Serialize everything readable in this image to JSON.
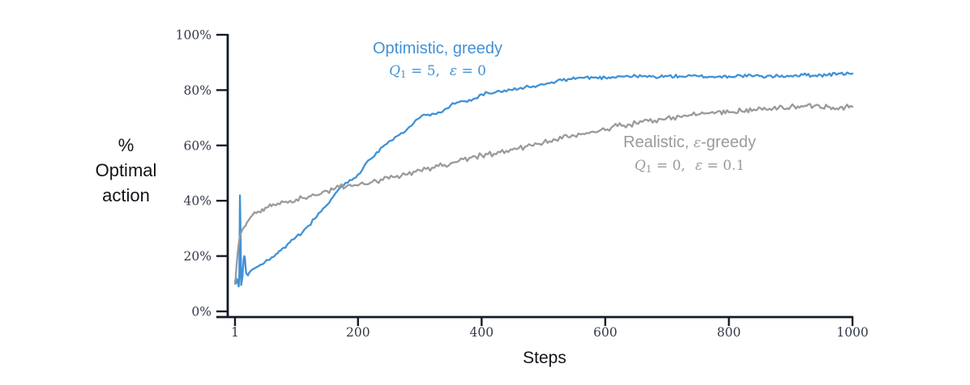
{
  "figure": {
    "ylabel_lines": [
      "%",
      "Optimal",
      "action"
    ],
    "xlabel": "Steps"
  },
  "colors": {
    "axis": "#131a26",
    "tick_text": "#343a4a",
    "optimistic_blue": "#4191d6",
    "realistic_gray": "#9a9a9a",
    "label_black": "#111418",
    "background": "#ffffff"
  },
  "annotations": {
    "optimistic": {
      "line1": "Optimistic, greedy",
      "q": "Q",
      "q_sub": "1",
      "q_eq": " = 5,",
      "eps": "ε",
      "eps_eq": " = 0"
    },
    "realistic": {
      "line1_pre": "Realistic, ",
      "line1_eps": "ε",
      "line1_post": "-greedy",
      "q": "Q",
      "q_sub": "1",
      "q_eq": " = 0,",
      "eps": "ε",
      "eps_eq": " = 0.1"
    }
  },
  "chart_data": {
    "type": "line",
    "title": "",
    "xlabel": "Steps",
    "ylabel": "% Optimal action",
    "xlim": [
      1,
      1000
    ],
    "ylim": [
      0,
      100
    ],
    "grid": false,
    "legend_position": "inline-annotations",
    "x_ticks": {
      "values": [
        1,
        200,
        400,
        600,
        800,
        1000
      ],
      "labels": [
        "1",
        "200",
        "400",
        "600",
        "800",
        "1000"
      ]
    },
    "y_ticks": {
      "values": [
        0,
        20,
        40,
        60,
        80,
        100
      ],
      "labels": [
        "0%",
        "20%",
        "40%",
        "60%",
        "80%",
        "100%"
      ]
    },
    "series": [
      {
        "id": "optimistic-greedy",
        "name": "Optimistic, greedy",
        "params": "Q1 = 5, ε = 0",
        "color": "#4191d6",
        "noise": 0.6,
        "seed": 11,
        "points": [
          [
            1,
            11
          ],
          [
            2,
            10
          ],
          [
            3,
            12
          ],
          [
            4,
            10.5
          ],
          [
            5,
            11.5
          ],
          [
            6,
            10
          ],
          [
            7,
            9
          ],
          [
            8,
            13
          ],
          [
            9,
            42
          ],
          [
            10,
            28
          ],
          [
            11,
            9.5
          ],
          [
            12,
            11
          ],
          [
            13,
            12.5
          ],
          [
            14,
            16
          ],
          [
            15,
            19
          ],
          [
            16,
            20
          ],
          [
            17,
            19.5
          ],
          [
            18,
            16
          ],
          [
            19,
            14
          ],
          [
            20,
            13.5
          ],
          [
            22,
            13
          ],
          [
            24,
            14
          ],
          [
            26,
            14.5
          ],
          [
            28,
            15
          ],
          [
            32,
            15.5
          ],
          [
            36,
            16
          ],
          [
            40,
            16.5
          ],
          [
            45,
            17
          ],
          [
            50,
            18
          ],
          [
            55,
            18.5
          ],
          [
            60,
            19.5
          ],
          [
            65,
            20
          ],
          [
            70,
            21
          ],
          [
            75,
            22
          ],
          [
            80,
            23
          ],
          [
            85,
            24
          ],
          [
            90,
            25
          ],
          [
            95,
            26
          ],
          [
            100,
            27
          ],
          [
            110,
            28.5
          ],
          [
            120,
            31
          ],
          [
            130,
            33.5
          ],
          [
            140,
            36
          ],
          [
            150,
            38.5
          ],
          [
            160,
            41.5
          ],
          [
            170,
            44.5
          ],
          [
            180,
            46.5
          ],
          [
            190,
            47.5
          ],
          [
            200,
            49.5
          ],
          [
            210,
            52.5
          ],
          [
            220,
            55
          ],
          [
            230,
            57.5
          ],
          [
            240,
            59.5
          ],
          [
            250,
            61.5
          ],
          [
            260,
            63
          ],
          [
            270,
            64.5
          ],
          [
            280,
            66
          ],
          [
            290,
            68
          ],
          [
            300,
            70
          ],
          [
            310,
            71
          ],
          [
            320,
            71.5
          ],
          [
            330,
            72
          ],
          [
            340,
            73
          ],
          [
            350,
            74.5
          ],
          [
            360,
            75.5
          ],
          [
            370,
            76
          ],
          [
            380,
            76.5
          ],
          [
            390,
            77
          ],
          [
            400,
            78.5
          ],
          [
            410,
            79
          ],
          [
            420,
            79
          ],
          [
            430,
            79.5
          ],
          [
            440,
            79.5
          ],
          [
            450,
            80
          ],
          [
            460,
            80.5
          ],
          [
            470,
            81
          ],
          [
            480,
            81
          ],
          [
            490,
            81.5
          ],
          [
            500,
            82
          ],
          [
            510,
            82.5
          ],
          [
            520,
            83
          ],
          [
            530,
            83.5
          ],
          [
            540,
            84
          ],
          [
            560,
            84.5
          ],
          [
            580,
            84.5
          ],
          [
            600,
            84.5
          ],
          [
            620,
            85
          ],
          [
            650,
            85
          ],
          [
            680,
            84.8
          ],
          [
            700,
            85
          ],
          [
            720,
            85
          ],
          [
            750,
            85
          ],
          [
            780,
            84.8
          ],
          [
            800,
            85
          ],
          [
            820,
            85.2
          ],
          [
            850,
            85
          ],
          [
            880,
            85
          ],
          [
            900,
            85.2
          ],
          [
            920,
            85.5
          ],
          [
            940,
            85.3
          ],
          [
            960,
            85.5
          ],
          [
            980,
            86
          ],
          [
            1000,
            86
          ]
        ]
      },
      {
        "id": "realistic-eps-greedy",
        "name": "Realistic, ε-greedy",
        "params": "Q1 = 0, ε = 0.1",
        "color": "#9a9a9a",
        "noise": 1.0,
        "seed": 23,
        "points": [
          [
            1,
            10
          ],
          [
            2,
            12
          ],
          [
            3,
            15
          ],
          [
            4,
            18
          ],
          [
            5,
            20.5
          ],
          [
            6,
            22.5
          ],
          [
            7,
            24.5
          ],
          [
            8,
            26
          ],
          [
            9,
            27
          ],
          [
            10,
            28
          ],
          [
            12,
            29
          ],
          [
            14,
            30
          ],
          [
            16,
            30.5
          ],
          [
            18,
            31
          ],
          [
            20,
            32
          ],
          [
            23,
            33
          ],
          [
            26,
            34
          ],
          [
            30,
            35
          ],
          [
            35,
            35.5
          ],
          [
            40,
            36
          ],
          [
            45,
            37
          ],
          [
            50,
            37.5
          ],
          [
            55,
            37.8
          ],
          [
            60,
            38
          ],
          [
            65,
            38.5
          ],
          [
            70,
            39
          ],
          [
            80,
            39.5
          ],
          [
            90,
            40
          ],
          [
            100,
            40.5
          ],
          [
            110,
            41
          ],
          [
            120,
            41.5
          ],
          [
            130,
            42
          ],
          [
            140,
            42.5
          ],
          [
            150,
            43.5
          ],
          [
            160,
            44
          ],
          [
            170,
            45
          ],
          [
            180,
            45
          ],
          [
            190,
            45.3
          ],
          [
            200,
            45.5
          ],
          [
            210,
            46
          ],
          [
            220,
            46.5
          ],
          [
            230,
            47
          ],
          [
            240,
            47.5
          ],
          [
            250,
            48
          ],
          [
            260,
            48.5
          ],
          [
            270,
            49
          ],
          [
            280,
            49.5
          ],
          [
            290,
            50.5
          ],
          [
            300,
            51
          ],
          [
            310,
            51.5
          ],
          [
            320,
            52
          ],
          [
            330,
            52.5
          ],
          [
            340,
            53
          ],
          [
            350,
            53.5
          ],
          [
            360,
            54
          ],
          [
            370,
            55
          ],
          [
            380,
            55.5
          ],
          [
            390,
            56
          ],
          [
            400,
            56.5
          ],
          [
            410,
            56.8
          ],
          [
            420,
            57
          ],
          [
            430,
            57.5
          ],
          [
            440,
            58
          ],
          [
            450,
            58.5
          ],
          [
            460,
            59
          ],
          [
            470,
            59.5
          ],
          [
            480,
            60
          ],
          [
            490,
            60.5
          ],
          [
            500,
            61
          ],
          [
            510,
            61.5
          ],
          [
            520,
            62
          ],
          [
            530,
            62.5
          ],
          [
            540,
            63
          ],
          [
            550,
            63.5
          ],
          [
            560,
            64
          ],
          [
            570,
            64.5
          ],
          [
            580,
            65
          ],
          [
            590,
            65.2
          ],
          [
            600,
            65.5
          ],
          [
            610,
            66.5
          ],
          [
            620,
            67
          ],
          [
            630,
            67.2
          ],
          [
            640,
            67.5
          ],
          [
            650,
            68
          ],
          [
            660,
            68.5
          ],
          [
            670,
            68.8
          ],
          [
            680,
            69
          ],
          [
            690,
            69.5
          ],
          [
            700,
            70
          ],
          [
            710,
            70.2
          ],
          [
            720,
            70.5
          ],
          [
            730,
            70.8
          ],
          [
            740,
            71
          ],
          [
            750,
            71.2
          ],
          [
            760,
            71.5
          ],
          [
            770,
            71.8
          ],
          [
            780,
            72
          ],
          [
            800,
            72
          ],
          [
            820,
            72.5
          ],
          [
            840,
            73
          ],
          [
            860,
            73
          ],
          [
            880,
            73.5
          ],
          [
            900,
            74
          ],
          [
            920,
            74
          ],
          [
            940,
            74.5
          ],
          [
            960,
            74
          ],
          [
            980,
            73.8
          ],
          [
            1000,
            74
          ]
        ]
      }
    ]
  }
}
